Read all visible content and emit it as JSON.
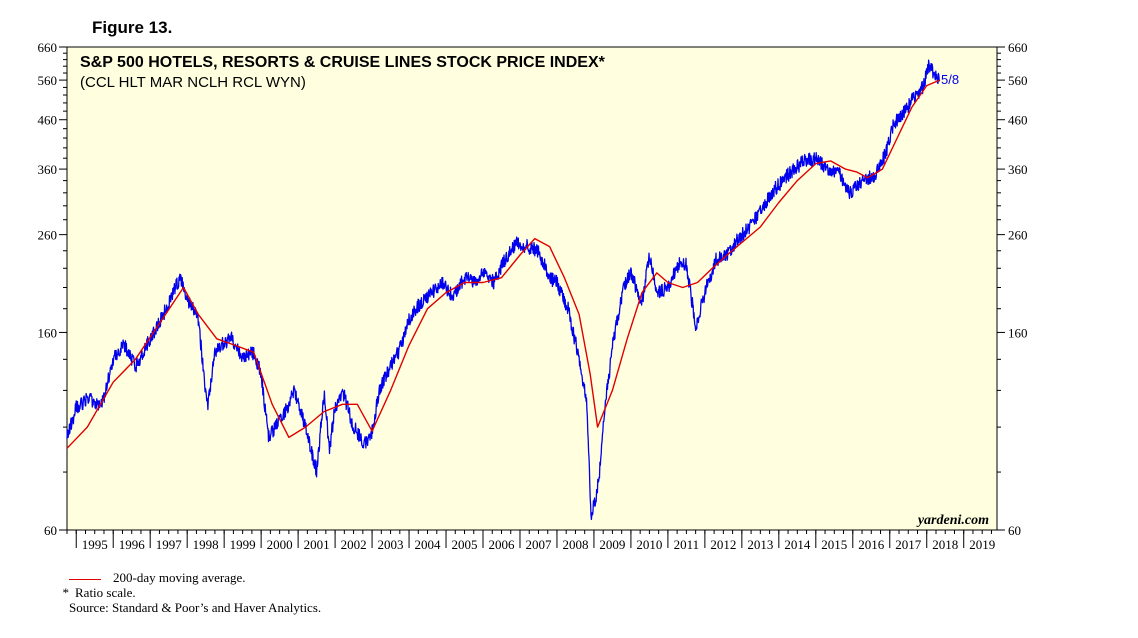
{
  "figure_label": "Figure 13.",
  "chart_data": {
    "type": "line",
    "title": "S&P 500 HOTELS, RESORTS & CRUISE LINES STOCK PRICE INDEX*",
    "subtitle": "(CCL HLT MAR NCLH RCL WYN)",
    "scale": "log",
    "ylim": [
      60,
      660
    ],
    "xlim": [
      1994.75,
      2019.9
    ],
    "yticks": [
      60,
      160,
      260,
      360,
      460,
      560,
      660
    ],
    "ytick_labels": [
      "60",
      "160",
      "260",
      "360",
      "460",
      "560",
      "660"
    ],
    "right_ytick_labels": [
      "60",
      "160",
      "260",
      "360",
      "460",
      "560",
      "660"
    ],
    "xticks": [
      "1995",
      "1996",
      "1997",
      "1998",
      "1999",
      "2000",
      "2001",
      "2002",
      "2003",
      "2004",
      "2005",
      "2006",
      "2007",
      "2008",
      "2009",
      "2010",
      "2011",
      "2012",
      "2013",
      "2014",
      "2015",
      "2016",
      "2017",
      "2018",
      "2019"
    ],
    "end_label": "5/8",
    "watermark": "yardeni.com",
    "series": [
      {
        "name": "Index",
        "color": "#0000ee",
        "x": [
          1994.75,
          1995.0,
          1995.3,
          1995.7,
          1996.0,
          1996.3,
          1996.6,
          1996.9,
          1997.2,
          1997.5,
          1997.8,
          1998.0,
          1998.3,
          1998.55,
          1998.75,
          1998.9,
          1999.2,
          1999.5,
          1999.8,
          2000.0,
          2000.2,
          2000.4,
          2000.7,
          2000.9,
          2001.2,
          2001.5,
          2001.7,
          2001.85,
          2002.0,
          2002.2,
          2002.5,
          2002.8,
          2003.0,
          2003.2,
          2003.5,
          2003.8,
          2004.0,
          2004.3,
          2004.6,
          2004.9,
          2005.2,
          2005.5,
          2005.8,
          2006.0,
          2006.3,
          2006.6,
          2006.9,
          2007.2,
          2007.5,
          2007.8,
          2008.0,
          2008.3,
          2008.6,
          2008.8,
          2008.92,
          2009.05,
          2009.15,
          2009.3,
          2009.5,
          2009.8,
          2010.0,
          2010.3,
          2010.5,
          2010.7,
          2011.0,
          2011.3,
          2011.5,
          2011.75,
          2012.0,
          2012.3,
          2012.6,
          2012.9,
          2013.2,
          2013.5,
          2013.8,
          2014.1,
          2014.4,
          2014.7,
          2015.0,
          2015.3,
          2015.6,
          2015.9,
          2016.1,
          2016.3,
          2016.6,
          2016.9,
          2017.1,
          2017.4,
          2017.7,
          2017.9,
          2018.05,
          2018.2,
          2018.35
        ],
        "values": [
          95,
          110,
          115,
          112,
          140,
          150,
          135,
          150,
          165,
          185,
          210,
          190,
          170,
          110,
          145,
          150,
          155,
          140,
          145,
          130,
          95,
          100,
          110,
          120,
          100,
          80,
          118,
          90,
          110,
          120,
          100,
          92,
          98,
          120,
          135,
          150,
          170,
          185,
          195,
          205,
          190,
          210,
          205,
          215,
          205,
          230,
          250,
          245,
          240,
          210,
          205,
          180,
          140,
          115,
          65,
          70,
          80,
          110,
          150,
          200,
          215,
          185,
          235,
          195,
          200,
          225,
          225,
          165,
          195,
          230,
          235,
          255,
          270,
          290,
          320,
          340,
          360,
          375,
          380,
          360,
          355,
          320,
          330,
          340,
          350,
          390,
          450,
          480,
          520,
          540,
          600,
          580,
          560
        ]
      },
      {
        "name": "200-day moving average.",
        "color": "#e00000",
        "x": [
          1994.75,
          1995.3,
          1996.0,
          1996.6,
          1997.2,
          1997.9,
          1998.3,
          1998.8,
          1999.3,
          1999.8,
          2000.3,
          2000.75,
          2001.2,
          2001.7,
          2002.2,
          2002.6,
          2003.0,
          2003.5,
          2004.0,
          2004.5,
          2005.0,
          2005.5,
          2006.0,
          2006.5,
          2007.0,
          2007.4,
          2007.8,
          2008.2,
          2008.6,
          2008.9,
          2009.1,
          2009.5,
          2009.9,
          2010.3,
          2010.7,
          2011.0,
          2011.4,
          2011.8,
          2012.2,
          2012.6,
          2013.0,
          2013.5,
          2014.0,
          2014.5,
          2015.0,
          2015.4,
          2015.8,
          2016.1,
          2016.4,
          2016.8,
          2017.2,
          2017.6,
          2018.0,
          2018.35
        ],
        "values": [
          90,
          100,
          125,
          140,
          165,
          200,
          175,
          155,
          150,
          145,
          112,
          95,
          100,
          108,
          112,
          112,
          98,
          120,
          150,
          180,
          195,
          205,
          205,
          210,
          235,
          255,
          245,
          210,
          175,
          130,
          100,
          120,
          155,
          195,
          215,
          205,
          200,
          205,
          220,
          235,
          250,
          270,
          305,
          340,
          370,
          375,
          360,
          355,
          345,
          360,
          420,
          490,
          545,
          560
        ]
      }
    ],
    "legend": [
      {
        "label": "200-day moving average.",
        "color": "#e00000"
      }
    ],
    "footnote_star": "*",
    "footnote_text": "Ratio scale.",
    "source": "Source: Standard & Poor’s and Haver Analytics."
  }
}
